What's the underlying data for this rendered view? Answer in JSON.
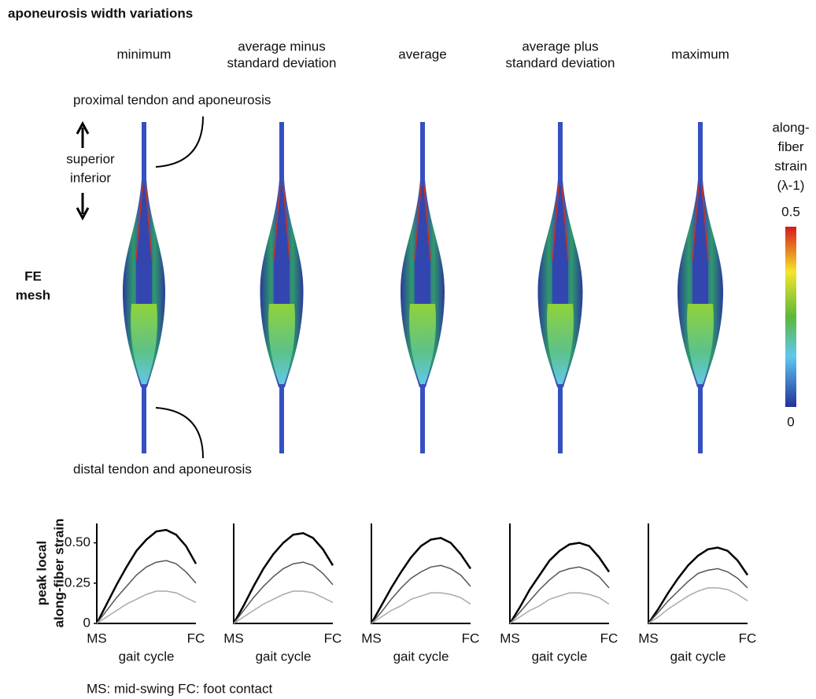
{
  "title": "aponeurosis width variations",
  "columns": [
    {
      "header": [
        "minimum"
      ]
    },
    {
      "header": [
        "average minus",
        "standard deviation"
      ]
    },
    {
      "header": [
        "average"
      ]
    },
    {
      "header": [
        "average plus",
        "standard deviation"
      ]
    },
    {
      "header": [
        "maximum"
      ]
    }
  ],
  "annotations": {
    "proximal": "proximal tendon and aponeurosis",
    "distal": "distal tendon and aponeurosis",
    "superior": "superior",
    "inferior": "inferior"
  },
  "row_label": [
    "FE",
    "mesh"
  ],
  "colorbar": {
    "title": [
      "along-",
      "fiber",
      "strain",
      "(λ-1)"
    ],
    "lim": [
      0,
      0.5
    ],
    "ticks": [
      0.5,
      0
    ]
  },
  "footnote": "MS: mid-swing   FC: foot contact",
  "chart_data": [
    {
      "type": "line",
      "x_label": "gait cycle",
      "y_label": [
        "peak local",
        "along-fiber strain"
      ],
      "categories": [
        "MS",
        null,
        null,
        null,
        null,
        null,
        null,
        null,
        null,
        null,
        "FC"
      ],
      "ylim": [
        0,
        0.62
      ],
      "yticks": [
        0,
        0.25,
        {
          "value": 0.5,
          "label": "0.50"
        }
      ],
      "series": [
        {
          "color": "#000000",
          "values": [
            0,
            0.12,
            0.24,
            0.35,
            0.45,
            0.52,
            0.57,
            0.58,
            0.55,
            0.48,
            0.37
          ]
        },
        {
          "color": "#555555",
          "values": [
            0,
            0.08,
            0.16,
            0.23,
            0.3,
            0.35,
            0.38,
            0.39,
            0.37,
            0.32,
            0.25
          ]
        },
        {
          "color": "#aaaaaa",
          "values": [
            0,
            0.04,
            0.08,
            0.12,
            0.15,
            0.18,
            0.2,
            0.2,
            0.19,
            0.16,
            0.13
          ]
        }
      ]
    },
    {
      "type": "line",
      "x_label": "gait cycle",
      "categories": [
        "MS",
        null,
        null,
        null,
        null,
        null,
        null,
        null,
        null,
        null,
        "FC"
      ],
      "ylim": [
        0,
        0.62
      ],
      "series": [
        {
          "color": "#000000",
          "values": [
            0,
            0.11,
            0.23,
            0.34,
            0.43,
            0.5,
            0.55,
            0.56,
            0.53,
            0.46,
            0.36
          ]
        },
        {
          "color": "#555555",
          "values": [
            0,
            0.08,
            0.16,
            0.23,
            0.29,
            0.34,
            0.37,
            0.38,
            0.36,
            0.31,
            0.24
          ]
        },
        {
          "color": "#aaaaaa",
          "values": [
            0,
            0.04,
            0.08,
            0.12,
            0.15,
            0.18,
            0.2,
            0.2,
            0.19,
            0.16,
            0.13
          ]
        }
      ]
    },
    {
      "type": "line",
      "x_label": "gait cycle",
      "categories": [
        "MS",
        null,
        null,
        null,
        null,
        null,
        null,
        null,
        null,
        null,
        "FC"
      ],
      "ylim": [
        0,
        0.62
      ],
      "series": [
        {
          "color": "#000000",
          "values": [
            0,
            0.11,
            0.22,
            0.32,
            0.41,
            0.48,
            0.52,
            0.53,
            0.5,
            0.43,
            0.34
          ]
        },
        {
          "color": "#555555",
          "values": [
            0,
            0.07,
            0.15,
            0.22,
            0.28,
            0.32,
            0.35,
            0.36,
            0.34,
            0.3,
            0.23
          ]
        },
        {
          "color": "#aaaaaa",
          "values": [
            0,
            0.04,
            0.08,
            0.11,
            0.15,
            0.17,
            0.19,
            0.19,
            0.18,
            0.16,
            0.12
          ]
        }
      ]
    },
    {
      "type": "line",
      "x_label": "gait cycle",
      "categories": [
        "MS",
        null,
        null,
        null,
        null,
        null,
        null,
        null,
        null,
        null,
        "FC"
      ],
      "ylim": [
        0,
        0.62
      ],
      "series": [
        {
          "color": "#000000",
          "values": [
            0,
            0.1,
            0.21,
            0.3,
            0.39,
            0.45,
            0.49,
            0.5,
            0.48,
            0.41,
            0.32
          ]
        },
        {
          "color": "#555555",
          "values": [
            0,
            0.07,
            0.14,
            0.21,
            0.27,
            0.32,
            0.34,
            0.35,
            0.33,
            0.29,
            0.22
          ]
        },
        {
          "color": "#aaaaaa",
          "values": [
            0,
            0.04,
            0.08,
            0.11,
            0.15,
            0.17,
            0.19,
            0.19,
            0.18,
            0.16,
            0.12
          ]
        }
      ]
    },
    {
      "type": "line",
      "x_label": "gait cycle",
      "categories": [
        "MS",
        null,
        null,
        null,
        null,
        null,
        null,
        null,
        null,
        null,
        "FC"
      ],
      "ylim": [
        0,
        0.62
      ],
      "series": [
        {
          "color": "#000000",
          "values": [
            0,
            0.09,
            0.19,
            0.28,
            0.36,
            0.42,
            0.46,
            0.47,
            0.45,
            0.39,
            0.3
          ]
        },
        {
          "color": "#555555",
          "values": [
            0,
            0.07,
            0.14,
            0.2,
            0.26,
            0.31,
            0.33,
            0.34,
            0.32,
            0.28,
            0.22
          ]
        },
        {
          "color": "#aaaaaa",
          "values": [
            0,
            0.04,
            0.09,
            0.13,
            0.17,
            0.2,
            0.22,
            0.22,
            0.21,
            0.18,
            0.14
          ]
        }
      ]
    }
  ]
}
